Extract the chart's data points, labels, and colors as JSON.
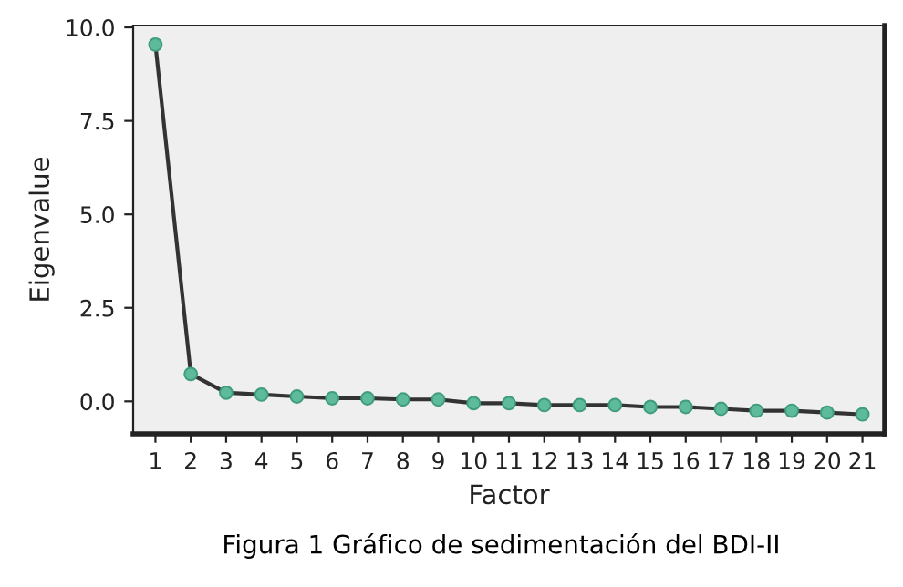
{
  "chart_data": {
    "type": "line",
    "xlabel": "Factor",
    "ylabel": "Eigenvalue",
    "annotations": [
      "Figura 1 Gráfico de sedimentación del BDI-II"
    ],
    "x": [
      1,
      2,
      3,
      4,
      5,
      6,
      7,
      8,
      9,
      10,
      11,
      12,
      13,
      14,
      15,
      16,
      17,
      18,
      19,
      20,
      21
    ],
    "series": [
      {
        "color": "#5dbb9b",
        "values": [
          9.54,
          0.73,
          0.23,
          0.18,
          0.13,
          0.08,
          0.08,
          0.05,
          0.05,
          -0.05,
          -0.05,
          -0.1,
          -0.1,
          -0.1,
          -0.15,
          -0.15,
          -0.2,
          -0.25,
          -0.25,
          -0.3,
          -0.35
        ]
      }
    ],
    "xlim": [
      0.37,
      21.63
    ],
    "xticks": [
      1,
      2,
      3,
      4,
      5,
      6,
      7,
      8,
      9,
      10,
      11,
      12,
      13,
      14,
      15,
      16,
      17,
      18,
      19,
      20,
      21
    ],
    "ylim": [
      -0.87,
      10.05
    ],
    "yticks": [
      {
        "value": 0,
        "label": "0.0"
      },
      {
        "value": 2.5,
        "label": "2.5"
      },
      {
        "value": 5,
        "label": "5.0"
      },
      {
        "value": 7.5,
        "label": "7.5"
      },
      {
        "value": 10,
        "label": "10.0"
      }
    ],
    "marker": "circle",
    "line_style": "solid",
    "grid": false,
    "legend": false
  }
}
